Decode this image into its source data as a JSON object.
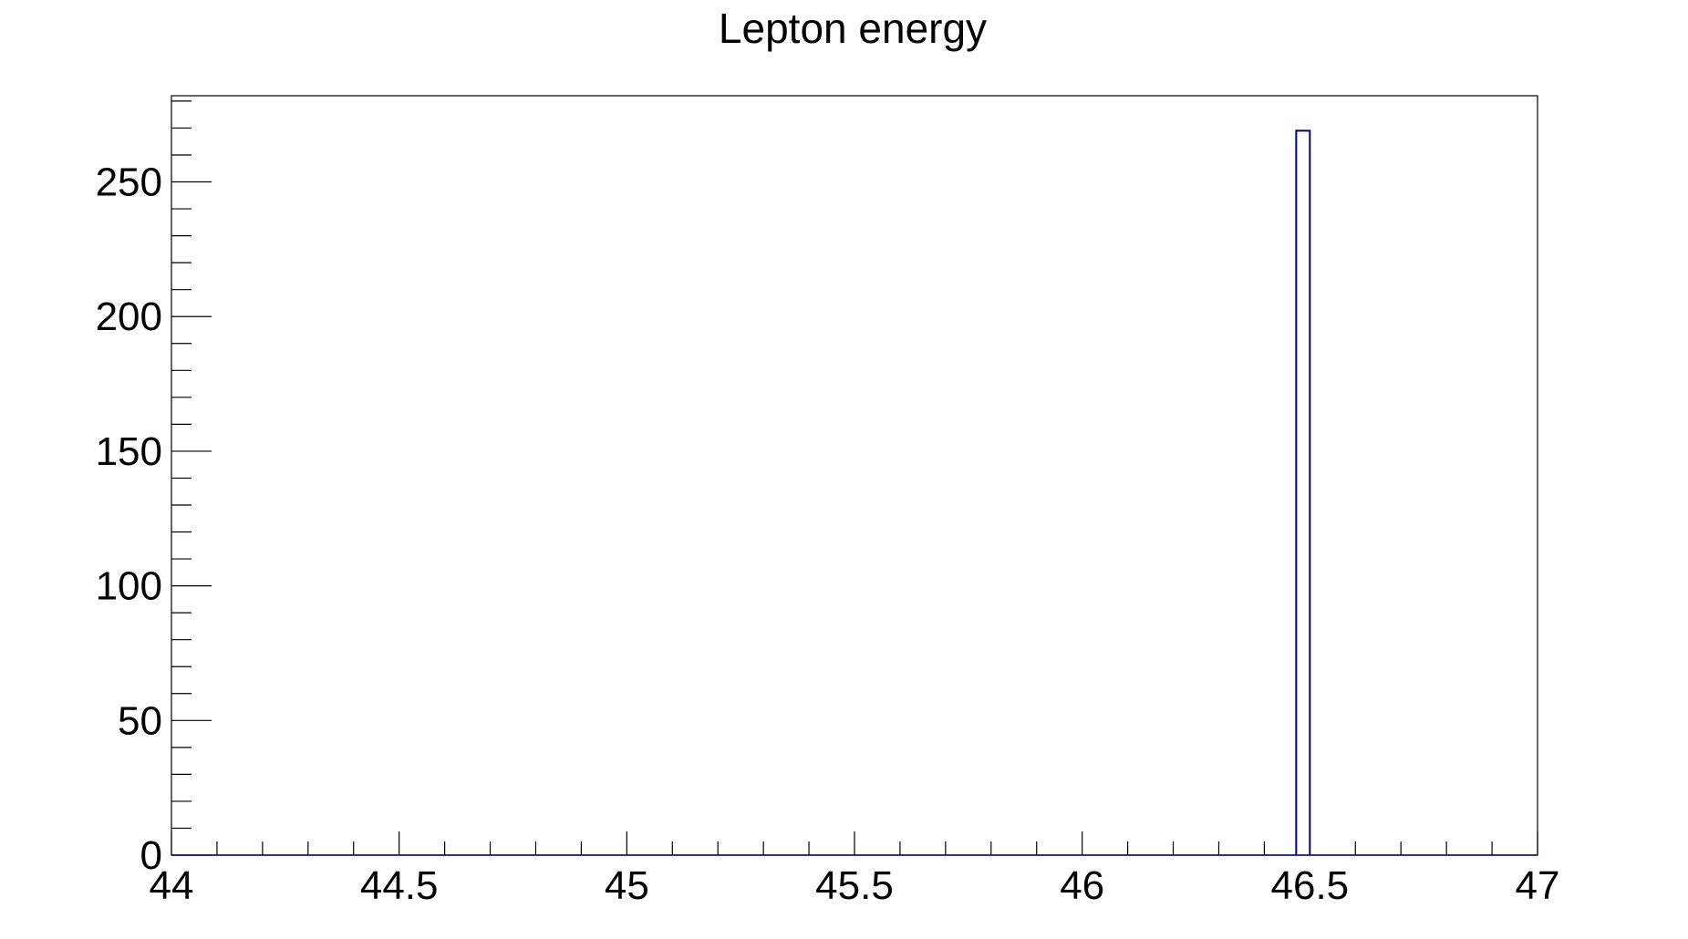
{
  "chart_data": {
    "type": "bar",
    "title": "Lepton energy",
    "xlabel": "",
    "ylabel": "",
    "xlim": [
      44,
      47
    ],
    "ylim": [
      0,
      282
    ],
    "grid": false,
    "x_ticks": [
      "44",
      "44.5",
      "45",
      "45.5",
      "46",
      "46.5",
      "47"
    ],
    "y_ticks": [
      "0",
      "50",
      "100",
      "150",
      "200",
      "250"
    ],
    "bins": [
      {
        "x_low": 46.47,
        "x_high": 46.5,
        "value": 269
      }
    ],
    "colors": {
      "histogram_line": "#000080",
      "axis": "#000000"
    }
  }
}
